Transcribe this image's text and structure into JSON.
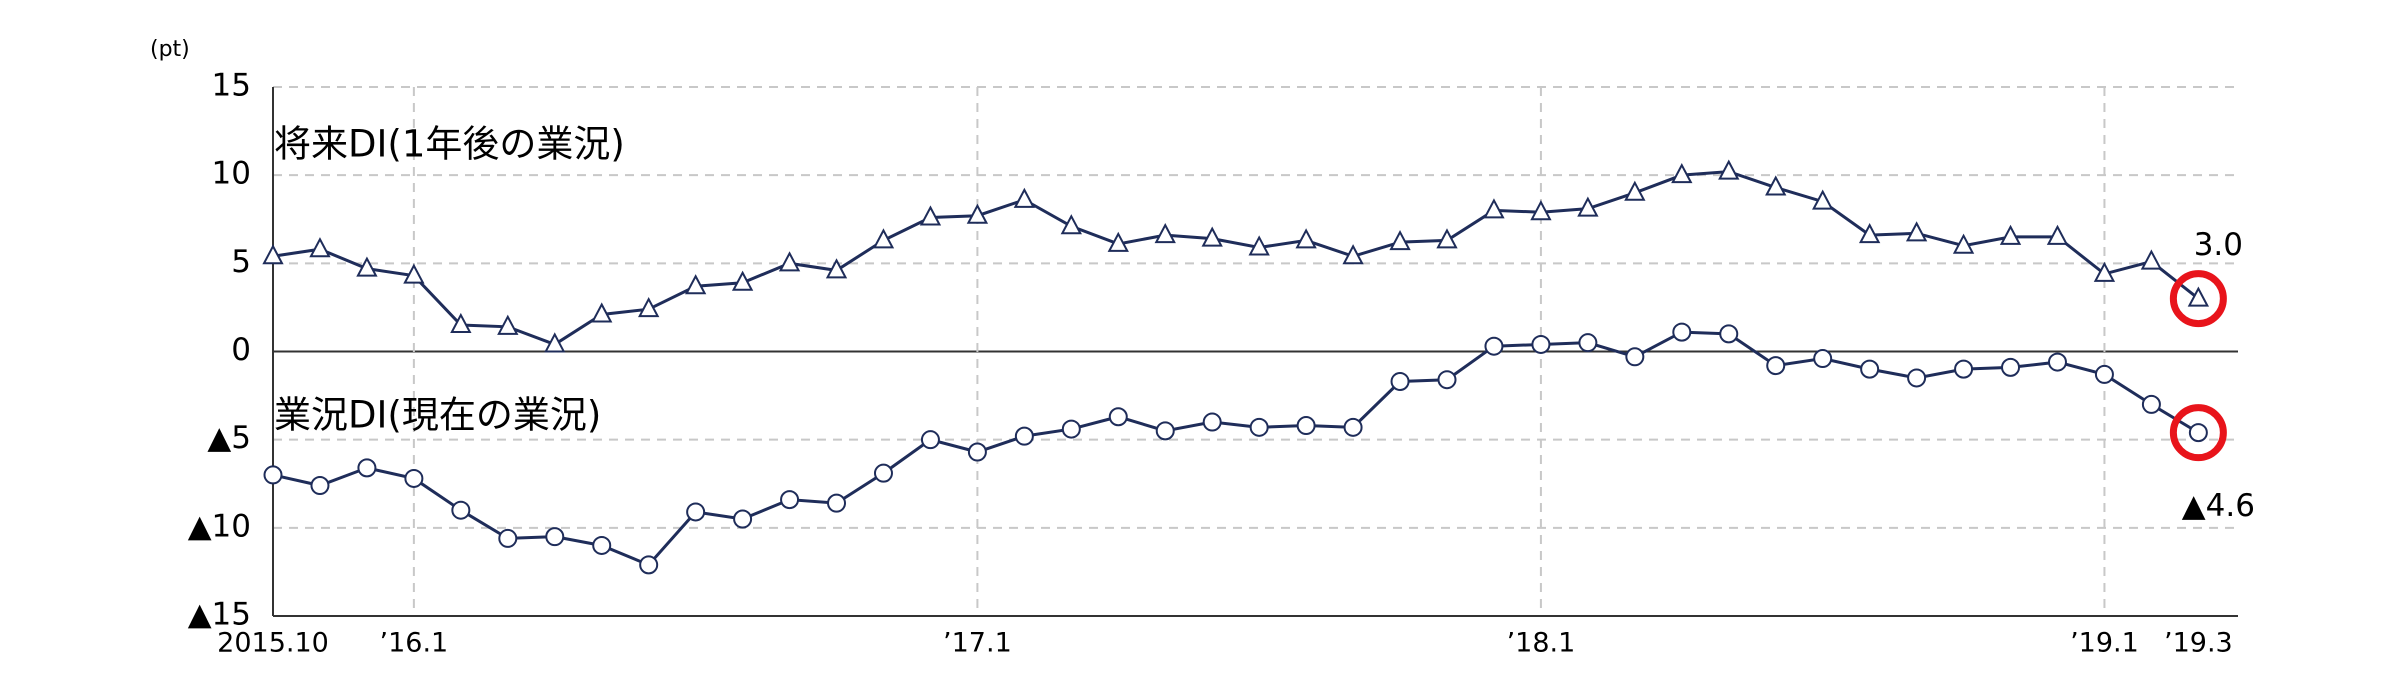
{
  "chart_data": {
    "type": "line",
    "y_label": "(pt)",
    "categories": [
      "2015.10",
      null,
      null,
      "’16.1",
      null,
      null,
      null,
      null,
      null,
      null,
      null,
      null,
      null,
      null,
      null,
      "’17.1",
      null,
      null,
      null,
      null,
      null,
      null,
      null,
      null,
      null,
      null,
      null,
      "’18.1",
      null,
      null,
      null,
      null,
      null,
      null,
      null,
      null,
      null,
      null,
      null,
      "’19.1",
      null,
      "’19.3"
    ],
    "series": [
      {
        "name": "将来DI(1年後の業況)",
        "color": "#1f2d5a",
        "marker": "triangle",
        "values": [
          5.4,
          5.8,
          4.7,
          4.3,
          1.5,
          1.4,
          0.4,
          2.1,
          2.4,
          3.7,
          3.9,
          5.0,
          4.6,
          6.3,
          7.6,
          7.7,
          8.6,
          7.1,
          6.1,
          6.6,
          6.4,
          5.9,
          6.3,
          5.4,
          6.2,
          6.3,
          8.0,
          7.9,
          8.1,
          9.0,
          10.0,
          10.2,
          9.3,
          8.5,
          6.6,
          6.7,
          6.0,
          6.5,
          6.5,
          4.4,
          5.1,
          3.0
        ],
        "value_labels": [
          null,
          null,
          null,
          null,
          null,
          null,
          null,
          null,
          null,
          null,
          null,
          null,
          null,
          null,
          null,
          null,
          null,
          null,
          null,
          null,
          null,
          null,
          null,
          null,
          null,
          null,
          null,
          null,
          null,
          null,
          null,
          null,
          null,
          null,
          null,
          null,
          null,
          null,
          null,
          null,
          null,
          "3.0"
        ]
      },
      {
        "name": "業況DI(現在の業況)",
        "color": "#1f2d5a",
        "marker": "circle",
        "values": [
          -7.0,
          -7.6,
          -6.6,
          -7.2,
          -9.0,
          -10.6,
          -10.5,
          -11.0,
          -12.1,
          -9.1,
          -9.5,
          -8.4,
          -8.6,
          -6.9,
          -5.0,
          -5.7,
          -4.8,
          -4.4,
          -3.7,
          -4.5,
          -4.0,
          -4.3,
          -4.2,
          -4.3,
          -1.7,
          -1.6,
          0.3,
          0.4,
          0.5,
          -0.3,
          1.1,
          1.0,
          -0.8,
          -0.4,
          -1.0,
          -1.5,
          -1.0,
          -0.9,
          -0.6,
          -1.3,
          -3.0,
          -4.6
        ],
        "value_labels": [
          null,
          null,
          null,
          null,
          null,
          null,
          null,
          null,
          null,
          null,
          null,
          null,
          null,
          null,
          null,
          null,
          null,
          null,
          null,
          null,
          null,
          null,
          null,
          null,
          null,
          null,
          null,
          null,
          null,
          null,
          null,
          null,
          null,
          null,
          null,
          null,
          null,
          null,
          null,
          null,
          null,
          "▲4.6"
        ]
      }
    ],
    "ylim": [
      -15,
      15
    ],
    "yticks": [
      15,
      10,
      5,
      0,
      {
        "value": -5,
        "label": "▲5"
      },
      {
        "value": -10,
        "label": "▲10"
      },
      {
        "value": -15,
        "label": "▲15"
      }
    ],
    "grid": true,
    "highlight_color": "#e8141b"
  }
}
